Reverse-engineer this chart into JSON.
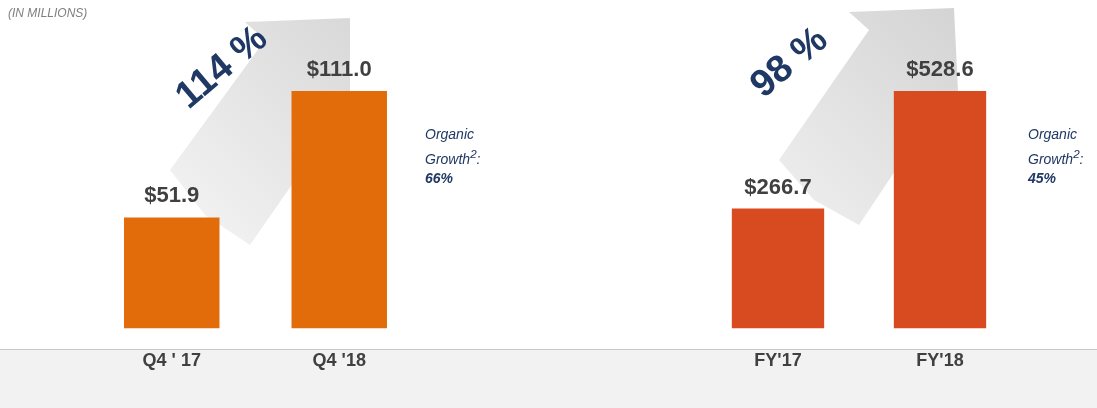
{
  "chart_data": [
    {
      "type": "bar",
      "subtitle": "(IN MILLIONS)",
      "categories": [
        "Q4 ' 17",
        "Q4 '18"
      ],
      "values": [
        51.9,
        111.0
      ],
      "value_labels": [
        "$51.9",
        "$111.0"
      ],
      "color": "#e36c0a",
      "legend": false,
      "grid": false,
      "annotations": [
        "114 %",
        "Organic Growth$^{2}$:",
        "66%"
      ]
    },
    {
      "type": "bar",
      "categories": [
        "FY'17",
        "FY'18"
      ],
      "values": [
        266.7,
        528.6
      ],
      "value_labels": [
        "$266.7",
        "$528.6"
      ],
      "color": "#d84a1f",
      "legend": false,
      "grid": false,
      "annotations": [
        "98 %",
        "Organic Growth$^{2}$:",
        "45%"
      ]
    }
  ]
}
